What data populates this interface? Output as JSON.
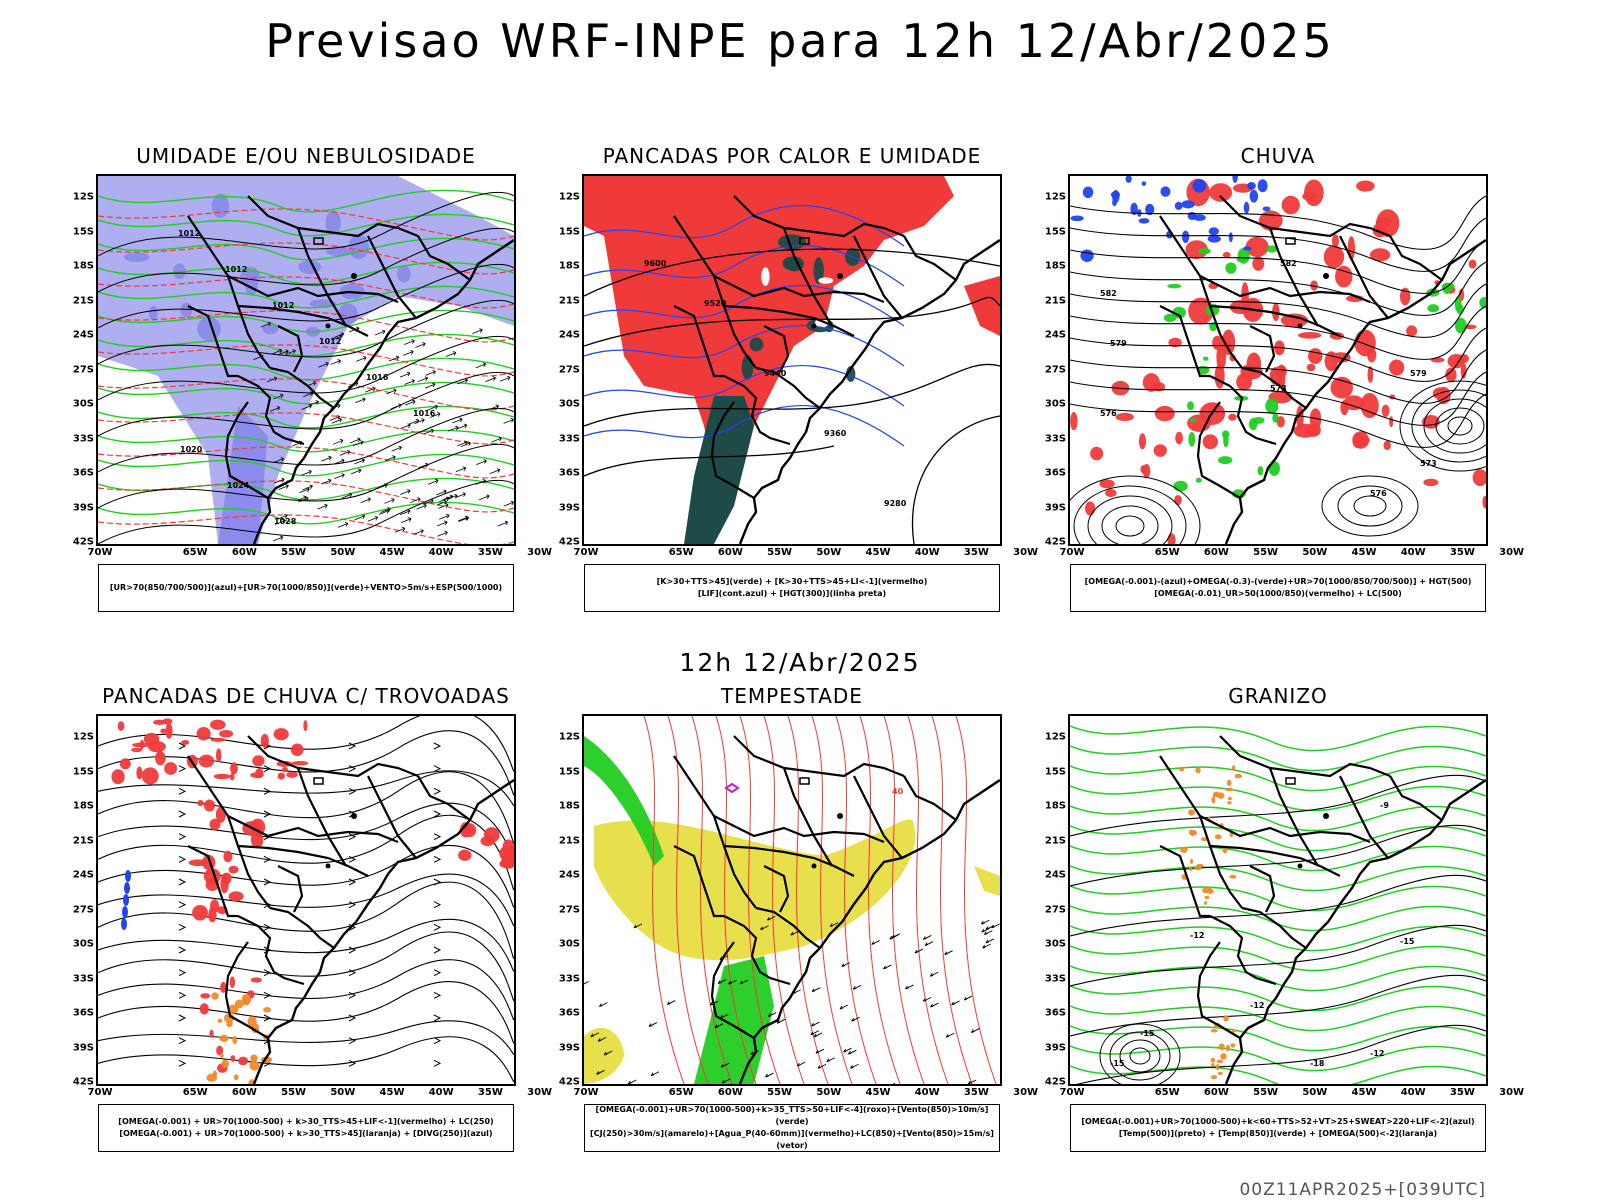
{
  "title": "Previsao WRF-INPE  para 12h 12/Abr/2025",
  "mid_label": "12h 12/Abr/2025",
  "footer": "00Z11APR2025+[039UTC]",
  "lat_ticks": [
    "12S",
    "15S",
    "18S",
    "21S",
    "24S",
    "27S",
    "30S",
    "33S",
    "36S",
    "39S",
    "42S"
  ],
  "lon_ticks": [
    "70W",
    "65W",
    "60W",
    "55W",
    "50W",
    "45W",
    "40W",
    "35W",
    "30W"
  ],
  "colors": {
    "red": "#f03a3a",
    "green": "#22cc22",
    "blue": "#2244ee",
    "lavender": "#a0a0ee",
    "darkteal": "#1e4a48",
    "yellow": "#e6dc3a",
    "orange": "#f08a2a",
    "purple": "#bb22cc",
    "black": "#000000"
  },
  "panels": [
    {
      "title": "UMIDADE E/OU NEBULOSIDADE",
      "legend": [
        "[UR>70(850/700/500)](azul)+[UR>70(1000/850)](verde)+VENTO>5m/s+ESP(500/1000)"
      ],
      "contour_labels": [
        "1012",
        "1012",
        "1012",
        "1012",
        "1016",
        "1016",
        "1020",
        "1024",
        "1028",
        "1012",
        "1020",
        "1016",
        "1020"
      ]
    },
    {
      "title": "PANCADAS POR CALOR E UMIDADE",
      "legend": [
        "[K>30+TTS>45](verde) + [K>30+TTS>45+LI<-1](vermelho)",
        "[LIF](cont.azul) + [HGT(300)](linha preta)"
      ],
      "contour_labels": [
        "9600",
        "9520",
        "9440",
        "9360",
        "9280",
        "9600",
        "9520",
        "9440",
        "9360",
        "9360",
        "9600"
      ]
    },
    {
      "title": "CHUVA",
      "legend": [
        "[OMEGA(-0.001)-(azul)+OMEGA(-0.3)-(verde)+UR>70(1000/850/700/500)] + HGT(500)",
        "[OMEGA(-0.01)_UR>50(1000/850)(vermelho) + LC(500)"
      ],
      "contour_labels": [
        "582",
        "579",
        "576",
        "573",
        "582",
        "579",
        "576",
        "573"
      ]
    },
    {
      "title": "PANCADAS DE CHUVA C/ TROVOADAS",
      "legend": [
        "[OMEGA(-0.001) + UR>70(1000-500) + k>30_TTS>45+LIF<-1](vermelho) + LC(250)",
        "[OMEGA(-0.001) + UR>70(1000-500) + k>30_TTS>45](laranja) + [DIVG(250)](azul)"
      ],
      "contour_labels": []
    },
    {
      "title": "TEMPESTADE",
      "legend": [
        "[OMEGA(-0.001)+UR>70(1000-500)+k>35_TTS>50+LIF<-4](roxo)+[Vento(850)>10m/s](verde)",
        "[CJ(250)>30m/s](amarelo)+[Agua_P(40-60mm)](vermelho)+LC(850)+[Vento(850)>15m/s](vetor)"
      ],
      "contour_labels": [
        "40"
      ]
    },
    {
      "title": "GRANIZO",
      "legend": [
        "[OMEGA(-0.001)+UR>70(1000-500)+k<60+TTS>52+VT>25+SWEAT>220+LIF<-2](azul)",
        "[Temp(500)](preto) + [Temp(850)](verde) + [OMEGA(500)<-2](laranja)"
      ],
      "contour_labels": [
        "-9",
        "-12",
        "-15",
        "-12",
        "-15",
        "-15",
        "-18",
        "-12"
      ]
    }
  ]
}
